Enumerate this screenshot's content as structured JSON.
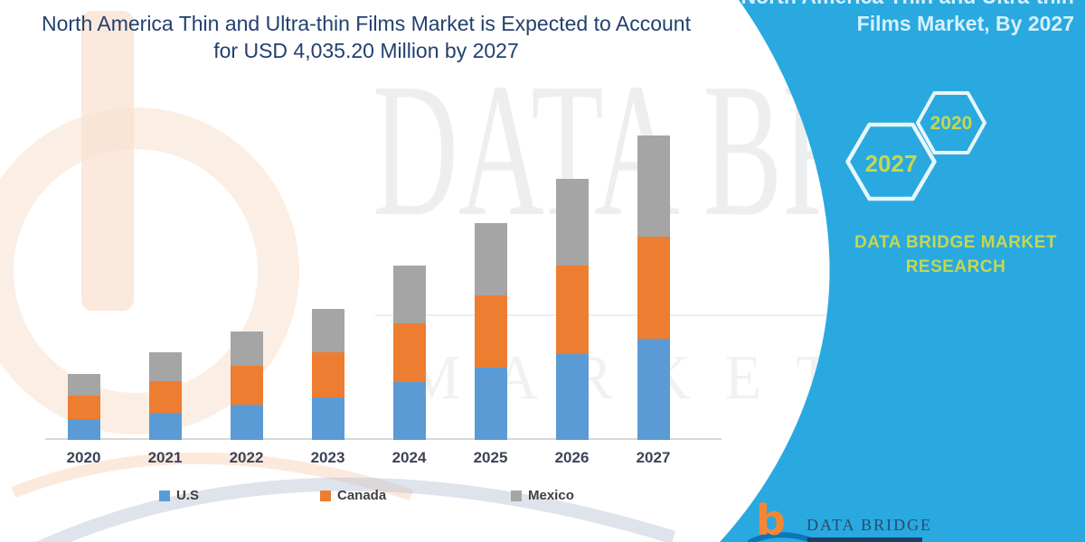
{
  "header": {
    "title_line1": "North America Thin and Ultra-thin Films Market is Expected to Account",
    "title_line2": "for USD 4,035.20 Million by 2027"
  },
  "ribbon": {
    "heading_line1": "North America Thin and Ultra-thin",
    "heading_line2": "Films Market, By 2027",
    "hexagons": [
      {
        "label": "2027"
      },
      {
        "label": "2020"
      }
    ],
    "brand_line1": "DATA BRIDGE MARKET",
    "brand_line2": "RESEARCH",
    "color": "#29a9e0"
  },
  "watermark": {
    "row1": "DATA BRIDGE",
    "row2": "MARKET RESEARCH"
  },
  "logo": {
    "b": "b",
    "name": "DATA BRIDGE"
  },
  "chart_data": {
    "type": "bar",
    "stacked": true,
    "title": "North America Thin and Ultra-thin Films Market is Expected to Account for USD 4,035.20 Million by 2027",
    "unit": "USD Million",
    "categories": [
      "2020",
      "2021",
      "2022",
      "2023",
      "2024",
      "2025",
      "2026",
      "2027"
    ],
    "series": [
      {
        "name": "U.S",
        "color": "#5b9bd5",
        "values": [
          275,
          360,
          465,
          565,
          765,
          960,
          1140,
          1340
        ]
      },
      {
        "name": "Canada",
        "color": "#ed7d31",
        "values": [
          310,
          420,
          520,
          600,
          780,
          958,
          1172,
          1355.2
        ]
      },
      {
        "name": "Mexico",
        "color": "#a5a5a5",
        "values": [
          290,
          385,
          450,
          575,
          765,
          957,
          1150,
          1340
        ]
      }
    ],
    "totals": [
      875,
      1165,
      1435,
      1740,
      2310,
      2875,
      3462,
      4035.2
    ],
    "ylim": [
      0,
      4200
    ],
    "gridlines": false,
    "legend_position": "bottom",
    "xlabel": "",
    "ylabel": ""
  },
  "colors": {
    "title_text": "#23406f",
    "ribbon_blue": "#29a9e0",
    "ribbon_text": "#d5f0fc",
    "hex_year_text": "#c6d74d",
    "brand_text": "#c6d74d",
    "axis_line": "#d8d8d8",
    "year_label": "#3d4356",
    "legend_text": "#404040",
    "logo_orange": "#f58634",
    "logo_navy": "#2a4a70"
  }
}
